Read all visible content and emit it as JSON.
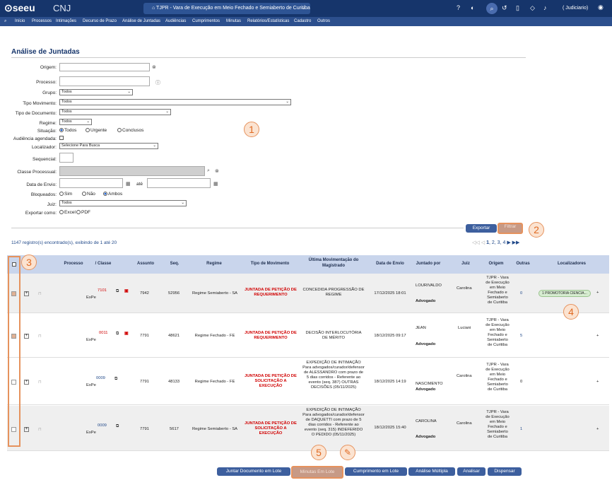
{
  "topbar": {
    "logo": "⊙seeu",
    "logo2": "CNJ",
    "tribunal": "TJPR - Vara de Execução em Meio Fechado e Semiaberto de Curitiba",
    "user": "( Judiciario)"
  },
  "nav": [
    "Início",
    "Processos",
    "Intimações",
    "Decurso de Prazo",
    "Análise de Juntadas",
    "Audiências",
    "Cumprimentos",
    "Minutas",
    "Relatórios/Estatísticas",
    "Cadastro",
    "Outros"
  ],
  "page_title": "Análise de Juntadas",
  "form": {
    "origem": "Origem:",
    "processo": "Processo:",
    "grupo": "Grupo:",
    "grupo_val": "Todos",
    "tipo_mov": "Tipo Movimento:",
    "tipo_mov_val": "Todos",
    "tipo_doc": "Tipo de Documento:",
    "tipo_doc_val": "Todos",
    "regime": "Regime:",
    "regime_val": "Todos",
    "situacao": "Situação:",
    "sit_todos": "Todos",
    "sit_urgente": "Urgente",
    "sit_conclusos": "Conclusos",
    "audiencia": "Audiência agendada:",
    "localizador": "Localizador:",
    "localizador_val": "Selecione Para Busca",
    "sequencial": "Sequencial:",
    "classe": "Classe Processual:",
    "data_envio": "Data de Envio:",
    "ate": "até",
    "bloqueados": "Bloqueados:",
    "bl_sim": "Sim",
    "bl_nao": "Não",
    "bl_ambos": "Ambos",
    "juiz": "Juiz:",
    "juiz_val": "Todos",
    "exportar_como": "Exportar como:",
    "excel": "Excel",
    "pdf": "PDF"
  },
  "buttons": {
    "exportar": "Exportar",
    "filtrar": "Filtrar"
  },
  "markers": {
    "m1": "1",
    "m2": "2",
    "m3": "3",
    "m4": "4",
    "m5": "5"
  },
  "registros": "1147 registro(s) encontrado(s), exibindo de 1 até 20",
  "pagination": {
    "current": "1",
    "p2": "2",
    "p3": "3",
    "p4": "4"
  },
  "table": {
    "headers": {
      "processo": "Processo",
      "classe": "/ Classe",
      "assunto": "Assunto",
      "seq": "Seq.",
      "regime": "Regime",
      "tipo": "Tipo de Movimento",
      "ultima": "Última Movimentação do Magistrado",
      "data": "Data de Envio",
      "juntado": "Juntado por",
      "juiz": "Juiz",
      "origem": "Origem",
      "outras": "Outras",
      "localizadores": "Localizadores"
    },
    "rows": [
      {
        "proc": "7101",
        "classe": "ExPe",
        "assunto": "7942",
        "seq": "52956",
        "regime": "Regime Semiaberto - SA",
        "tipo": "JUNTADA DE PETIÇÃO DE REQUERIMENTO",
        "ultima": "CONCEDIDA PROGRESSÃO DE REGIME",
        "data": "17/12/2025 18:01",
        "juntado": "LOURIVALDO",
        "papel": "Advogado",
        "juiz": "Carolina",
        "origem": "TJPR - Vara de Execução em Meio Fechado e Semiaberto de Curitiba",
        "outras": "0",
        "loc": "1 PROMOTORIA CIENCIA..."
      },
      {
        "proc": "0011",
        "classe": "ExPe",
        "assunto": "7791",
        "seq": "48621",
        "regime": "Regime Fechado - FE",
        "tipo": "JUNTADA DE PETIÇÃO DE REQUERIMENTO",
        "ultima": "DECISÃO INTERLOCUTÓRIA DE MÉRITO",
        "data": "18/12/2025 09:17",
        "juntado": "JEAN",
        "papel": "Advogado",
        "juiz": "Luciani",
        "origem": "TJPR - Vara de Execução em Meio Fechado e Semiaberto de Curitiba",
        "outras": "5",
        "loc": ""
      },
      {
        "proc": "0009",
        "classe": "ExPe",
        "assunto": "7791",
        "seq": "48133",
        "regime": "Regime Fechado - FE",
        "tipo": "JUNTADA DE PETIÇÃO DE SOLICITAÇÃO A EXECUÇÃO",
        "ultima": "EXPEDIÇÃO DE INTIMAÇÃO Para advogados/curador/defensor de ALESSANDRO com prazo de 5 dias corridos - Referente ao evento (seq. 387) OUTRAS DECISÕES (05/11/2025)",
        "data": "18/12/2025 14:19",
        "juntado": "NASCIMENTO",
        "papel": "Advogado",
        "juiz": "Carolina",
        "origem": "TJPR - Vara de Execução em Meio Fechado e Semiaberto de Curitiba",
        "outras": "0",
        "loc": ""
      },
      {
        "proc": "0009",
        "classe": "ExPe",
        "assunto": "7791",
        "seq": "5617",
        "regime": "Regime Semiaberto - SA",
        "tipo": "JUNTADA DE PETIÇÃO DE SOLICITAÇÃO A EXECUÇÃO",
        "ultima": "EXPEDIÇÃO DE INTIMAÇÃO Para advogados/curador/defensor de DAQUETTI com prazo de 5 dias corridos - Referente ao evento (seq. 315) INDEFERIDO O PEDIDO (05/11/2025)",
        "data": "18/12/2025 15:40",
        "juntado": "CAROLINA",
        "papel": "Advogado",
        "juiz": "Carolina",
        "origem": "TJPR - Vara de Execução em Meio Fechado e Semiaberto de Curitiba",
        "outras": "1",
        "loc": ""
      }
    ]
  },
  "bottom": {
    "juntar": "Juntar Documento em Lote",
    "minutas": "Minutas Em Lote",
    "cumprimento": "Cumprimento em Lote",
    "analise": "Análise Múltipla",
    "analisar": "Analisar",
    "dispensar": "Dispensar"
  },
  "colors": {
    "topbar": "#16356b",
    "nav": "#2c4f8d",
    "accent": "#e6925d",
    "button": "#3d5f9e"
  }
}
